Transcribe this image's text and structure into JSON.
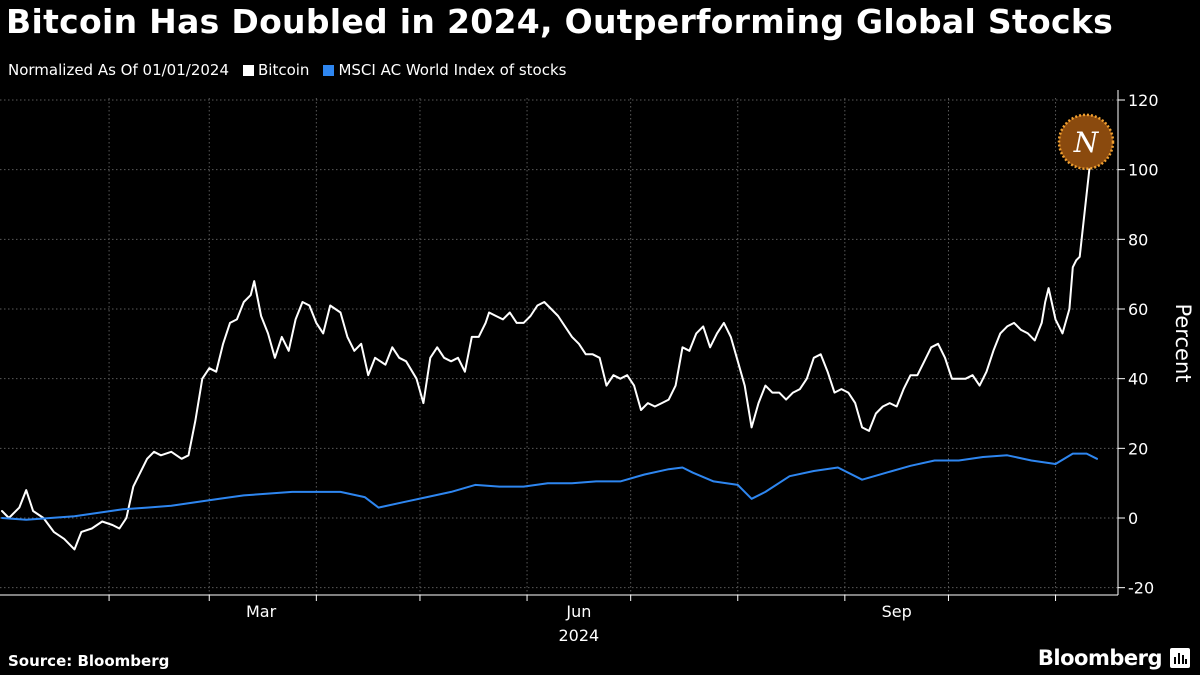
{
  "header": {
    "title": "Bitcoin Has Doubled in 2024, Outperforming Global Stocks",
    "subtitle": "Normalized As Of 01/01/2024"
  },
  "footer": {
    "source": "Source: Bloomberg",
    "brand": "Bloomberg"
  },
  "colors": {
    "background": "#000000",
    "bitcoin": "#ffffff",
    "msci": "#2e86f0",
    "grid": "#5a5a5a",
    "badge": "#f0a030"
  },
  "chart_data": {
    "type": "line",
    "title": "Bitcoin Has Doubled in 2024, Outperforming Global Stocks",
    "subtitle": "Normalized As Of 01/01/2024",
    "xlabel": "2024",
    "ylabel": "Percent",
    "xlim": [
      "2024-01-01",
      "2024-11-13"
    ],
    "ylim": [
      -20,
      120
    ],
    "y_ticks": [
      "-20",
      "0",
      "20",
      "40",
      "60",
      "80",
      "100",
      "120"
    ],
    "x_tick_labels": [
      {
        "date": "2024-03-01",
        "label": "Mar"
      },
      {
        "date": "2024-06-01",
        "label": "Jun"
      },
      {
        "date": "2024-09-01",
        "label": "Sep"
      }
    ],
    "x_year_label": "2024",
    "x_gridlines": [
      "2024-02-01",
      "2024-03-01",
      "2024-04-01",
      "2024-05-01",
      "2024-06-01",
      "2024-07-01",
      "2024-08-01",
      "2024-09-01",
      "2024-10-01",
      "2024-11-01"
    ],
    "grid": true,
    "legend_position": "top-left",
    "annotation": {
      "date": "2024-11-13",
      "value": 108,
      "label": "N"
    },
    "series": [
      {
        "name": "Bitcoin",
        "color": "#ffffff",
        "points": [
          [
            "2024-01-01",
            2
          ],
          [
            "2024-01-03",
            0
          ],
          [
            "2024-01-06",
            3
          ],
          [
            "2024-01-08",
            8
          ],
          [
            "2024-01-10",
            2
          ],
          [
            "2024-01-13",
            0
          ],
          [
            "2024-01-16",
            -4
          ],
          [
            "2024-01-19",
            -6
          ],
          [
            "2024-01-22",
            -9
          ],
          [
            "2024-01-24",
            -4
          ],
          [
            "2024-01-27",
            -3
          ],
          [
            "2024-01-30",
            -1
          ],
          [
            "2024-02-02",
            -2
          ],
          [
            "2024-02-04",
            -3
          ],
          [
            "2024-02-06",
            0
          ],
          [
            "2024-02-08",
            9
          ],
          [
            "2024-02-10",
            13
          ],
          [
            "2024-02-12",
            17
          ],
          [
            "2024-02-14",
            19
          ],
          [
            "2024-02-16",
            18
          ],
          [
            "2024-02-19",
            19
          ],
          [
            "2024-02-22",
            17
          ],
          [
            "2024-02-24",
            18
          ],
          [
            "2024-02-26",
            28
          ],
          [
            "2024-02-28",
            40
          ],
          [
            "2024-03-01",
            43
          ],
          [
            "2024-03-03",
            42
          ],
          [
            "2024-03-05",
            50
          ],
          [
            "2024-03-07",
            56
          ],
          [
            "2024-03-09",
            57
          ],
          [
            "2024-03-11",
            62
          ],
          [
            "2024-03-13",
            64
          ],
          [
            "2024-03-14",
            68
          ],
          [
            "2024-03-16",
            58
          ],
          [
            "2024-03-18",
            53
          ],
          [
            "2024-03-20",
            46
          ],
          [
            "2024-03-22",
            52
          ],
          [
            "2024-03-24",
            48
          ],
          [
            "2024-03-26",
            57
          ],
          [
            "2024-03-28",
            62
          ],
          [
            "2024-03-30",
            61
          ],
          [
            "2024-04-01",
            56
          ],
          [
            "2024-04-03",
            53
          ],
          [
            "2024-04-05",
            61
          ],
          [
            "2024-04-08",
            59
          ],
          [
            "2024-04-10",
            52
          ],
          [
            "2024-04-12",
            48
          ],
          [
            "2024-04-14",
            50
          ],
          [
            "2024-04-16",
            41
          ],
          [
            "2024-04-18",
            46
          ],
          [
            "2024-04-21",
            44
          ],
          [
            "2024-04-23",
            49
          ],
          [
            "2024-04-25",
            46
          ],
          [
            "2024-04-27",
            45
          ],
          [
            "2024-04-30",
            40
          ],
          [
            "2024-05-02",
            33
          ],
          [
            "2024-05-04",
            46
          ],
          [
            "2024-05-06",
            49
          ],
          [
            "2024-05-08",
            46
          ],
          [
            "2024-05-10",
            45
          ],
          [
            "2024-05-12",
            46
          ],
          [
            "2024-05-14",
            42
          ],
          [
            "2024-05-16",
            52
          ],
          [
            "2024-05-18",
            52
          ],
          [
            "2024-05-20",
            56
          ],
          [
            "2024-05-21",
            59
          ],
          [
            "2024-05-23",
            58
          ],
          [
            "2024-05-25",
            57
          ],
          [
            "2024-05-27",
            59
          ],
          [
            "2024-05-29",
            56
          ],
          [
            "2024-05-31",
            56
          ],
          [
            "2024-06-02",
            58
          ],
          [
            "2024-06-04",
            61
          ],
          [
            "2024-06-06",
            62
          ],
          [
            "2024-06-08",
            60
          ],
          [
            "2024-06-10",
            58
          ],
          [
            "2024-06-12",
            55
          ],
          [
            "2024-06-14",
            52
          ],
          [
            "2024-06-16",
            50
          ],
          [
            "2024-06-18",
            47
          ],
          [
            "2024-06-20",
            47
          ],
          [
            "2024-06-22",
            46
          ],
          [
            "2024-06-24",
            38
          ],
          [
            "2024-06-26",
            41
          ],
          [
            "2024-06-28",
            40
          ],
          [
            "2024-06-30",
            41
          ],
          [
            "2024-07-02",
            38
          ],
          [
            "2024-07-04",
            31
          ],
          [
            "2024-07-06",
            33
          ],
          [
            "2024-07-08",
            32
          ],
          [
            "2024-07-10",
            33
          ],
          [
            "2024-07-12",
            34
          ],
          [
            "2024-07-14",
            38
          ],
          [
            "2024-07-16",
            49
          ],
          [
            "2024-07-18",
            48
          ],
          [
            "2024-07-20",
            53
          ],
          [
            "2024-07-22",
            55
          ],
          [
            "2024-07-24",
            49
          ],
          [
            "2024-07-26",
            53
          ],
          [
            "2024-07-28",
            56
          ],
          [
            "2024-07-30",
            52
          ],
          [
            "2024-08-01",
            45
          ],
          [
            "2024-08-03",
            38
          ],
          [
            "2024-08-05",
            26
          ],
          [
            "2024-08-07",
            33
          ],
          [
            "2024-08-09",
            38
          ],
          [
            "2024-08-11",
            36
          ],
          [
            "2024-08-13",
            36
          ],
          [
            "2024-08-15",
            34
          ],
          [
            "2024-08-17",
            36
          ],
          [
            "2024-08-19",
            37
          ],
          [
            "2024-08-21",
            40
          ],
          [
            "2024-08-23",
            46
          ],
          [
            "2024-08-25",
            47
          ],
          [
            "2024-08-27",
            42
          ],
          [
            "2024-08-29",
            36
          ],
          [
            "2024-08-31",
            37
          ],
          [
            "2024-09-02",
            36
          ],
          [
            "2024-09-04",
            33
          ],
          [
            "2024-09-06",
            26
          ],
          [
            "2024-09-08",
            25
          ],
          [
            "2024-09-10",
            30
          ],
          [
            "2024-09-12",
            32
          ],
          [
            "2024-09-14",
            33
          ],
          [
            "2024-09-16",
            32
          ],
          [
            "2024-09-18",
            37
          ],
          [
            "2024-09-20",
            41
          ],
          [
            "2024-09-22",
            41
          ],
          [
            "2024-09-24",
            45
          ],
          [
            "2024-09-26",
            49
          ],
          [
            "2024-09-28",
            50
          ],
          [
            "2024-09-30",
            46
          ],
          [
            "2024-10-02",
            40
          ],
          [
            "2024-10-04",
            40
          ],
          [
            "2024-10-06",
            40
          ],
          [
            "2024-10-08",
            41
          ],
          [
            "2024-10-10",
            38
          ],
          [
            "2024-10-12",
            42
          ],
          [
            "2024-10-14",
            48
          ],
          [
            "2024-10-16",
            53
          ],
          [
            "2024-10-18",
            55
          ],
          [
            "2024-10-20",
            56
          ],
          [
            "2024-10-22",
            54
          ],
          [
            "2024-10-24",
            53
          ],
          [
            "2024-10-26",
            51
          ],
          [
            "2024-10-28",
            56
          ],
          [
            "2024-10-29",
            62
          ],
          [
            "2024-10-30",
            66
          ],
          [
            "2024-11-01",
            57
          ],
          [
            "2024-11-03",
            53
          ],
          [
            "2024-11-05",
            60
          ],
          [
            "2024-11-06",
            72
          ],
          [
            "2024-11-07",
            74
          ],
          [
            "2024-11-08",
            75
          ],
          [
            "2024-11-10",
            93
          ],
          [
            "2024-11-11",
            102
          ],
          [
            "2024-11-12",
            104
          ],
          [
            "2024-11-13",
            105
          ]
        ]
      },
      {
        "name": "MSCI AC World Index of stocks",
        "color": "#2e86f0",
        "points": [
          [
            "2024-01-01",
            0
          ],
          [
            "2024-01-08",
            -0.5
          ],
          [
            "2024-01-15",
            0
          ],
          [
            "2024-01-22",
            0.5
          ],
          [
            "2024-01-29",
            1.5
          ],
          [
            "2024-02-05",
            2.5
          ],
          [
            "2024-02-12",
            3
          ],
          [
            "2024-02-19",
            3.5
          ],
          [
            "2024-02-26",
            4.5
          ],
          [
            "2024-03-04",
            5.5
          ],
          [
            "2024-03-11",
            6.5
          ],
          [
            "2024-03-18",
            7
          ],
          [
            "2024-03-25",
            7.5
          ],
          [
            "2024-04-01",
            7.5
          ],
          [
            "2024-04-08",
            7.5
          ],
          [
            "2024-04-15",
            6
          ],
          [
            "2024-04-19",
            3
          ],
          [
            "2024-04-26",
            4.5
          ],
          [
            "2024-05-03",
            6
          ],
          [
            "2024-05-10",
            7.5
          ],
          [
            "2024-05-17",
            9.5
          ],
          [
            "2024-05-24",
            9
          ],
          [
            "2024-05-31",
            9
          ],
          [
            "2024-06-07",
            10
          ],
          [
            "2024-06-14",
            10
          ],
          [
            "2024-06-21",
            10.5
          ],
          [
            "2024-06-28",
            10.5
          ],
          [
            "2024-07-05",
            12.5
          ],
          [
            "2024-07-12",
            14
          ],
          [
            "2024-07-16",
            14.5
          ],
          [
            "2024-07-19",
            13
          ],
          [
            "2024-07-25",
            10.5
          ],
          [
            "2024-08-01",
            9.5
          ],
          [
            "2024-08-05",
            5.5
          ],
          [
            "2024-08-09",
            7.5
          ],
          [
            "2024-08-16",
            12
          ],
          [
            "2024-08-23",
            13.5
          ],
          [
            "2024-08-30",
            14.5
          ],
          [
            "2024-09-06",
            11
          ],
          [
            "2024-09-13",
            13
          ],
          [
            "2024-09-20",
            15
          ],
          [
            "2024-09-27",
            16.5
          ],
          [
            "2024-10-04",
            16.5
          ],
          [
            "2024-10-11",
            17.5
          ],
          [
            "2024-10-18",
            18
          ],
          [
            "2024-10-25",
            16.5
          ],
          [
            "2024-11-01",
            15.5
          ],
          [
            "2024-11-06",
            18.5
          ],
          [
            "2024-11-10",
            18.5
          ],
          [
            "2024-11-13",
            17
          ]
        ]
      }
    ]
  }
}
